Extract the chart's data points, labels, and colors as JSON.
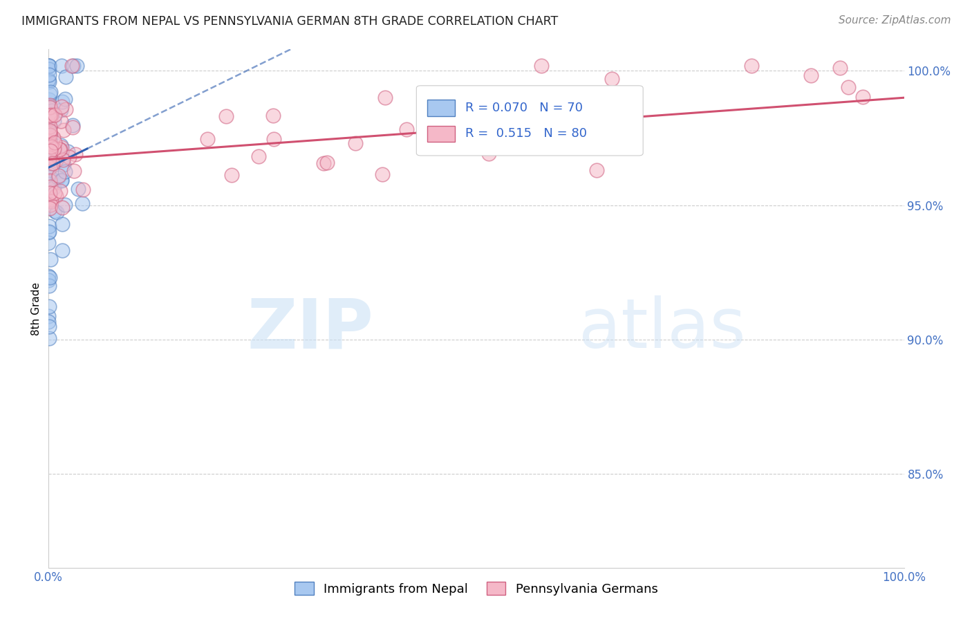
{
  "title": "IMMIGRANTS FROM NEPAL VS PENNSYLVANIA GERMAN 8TH GRADE CORRELATION CHART",
  "source": "Source: ZipAtlas.com",
  "ylabel": "8th Grade",
  "ylabel_right_labels": [
    "100.0%",
    "95.0%",
    "90.0%",
    "85.0%"
  ],
  "ylabel_right_values": [
    1.0,
    0.95,
    0.9,
    0.85
  ],
  "xlim": [
    0.0,
    1.0
  ],
  "ylim": [
    0.815,
    1.008
  ],
  "legend_label1": "Immigrants from Nepal",
  "legend_label2": "Pennsylvania Germans",
  "R1": 0.07,
  "N1": 70,
  "R2": 0.515,
  "N2": 80,
  "color_blue_fill": "#a8c8f0",
  "color_blue_edge": "#5080c0",
  "color_pink_fill": "#f5b8c8",
  "color_pink_edge": "#d06080",
  "color_blue_line": "#3060b0",
  "color_pink_line": "#d05070",
  "watermark_zip": "ZIP",
  "watermark_atlas": "atlas"
}
